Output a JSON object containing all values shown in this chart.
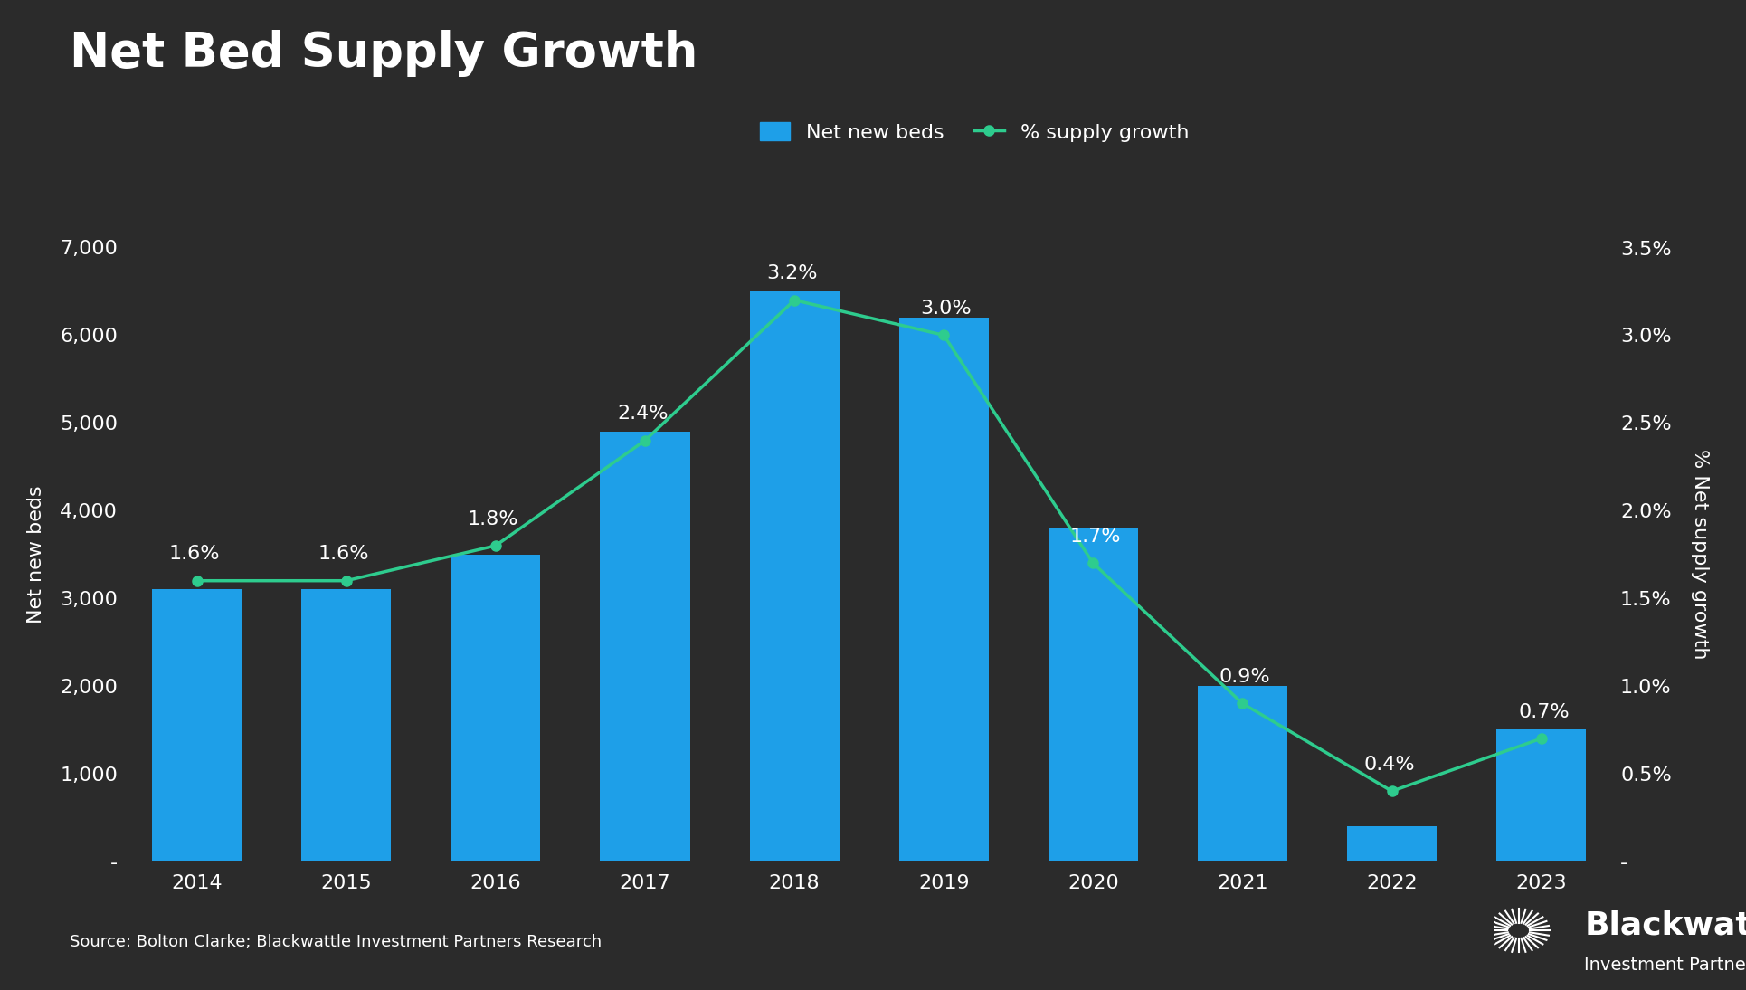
{
  "title": "Net Bed Supply Growth",
  "years": [
    2014,
    2015,
    2016,
    2017,
    2018,
    2019,
    2020,
    2021,
    2022,
    2023
  ],
  "net_new_beds": [
    3100,
    3100,
    3500,
    4900,
    6500,
    6200,
    3800,
    2000,
    400,
    1500
  ],
  "supply_growth": [
    1.6,
    1.6,
    1.8,
    2.4,
    3.2,
    3.0,
    1.7,
    0.9,
    0.4,
    0.7
  ],
  "supply_growth_labels": [
    "1.6%",
    "1.6%",
    "1.8%",
    "2.4%",
    "3.2%",
    "3.0%",
    "1.7%",
    "0.9%",
    "0.4%",
    "0.7%"
  ],
  "bar_color": "#1E9FE8",
  "line_color": "#2ECC8E",
  "background_color": "#2B2B2B",
  "text_color": "#FFFFFF",
  "ylabel_left": "Net new beds",
  "ylabel_right": "% Net supply growth",
  "left_yticks": [
    0,
    1000,
    2000,
    3000,
    4000,
    5000,
    6000,
    7000
  ],
  "left_ytick_labels": [
    "-",
    "1,000",
    "2,000",
    "3,000",
    "4,000",
    "5,000",
    "6,000",
    "7,000"
  ],
  "right_yticks": [
    0.0,
    0.5,
    1.0,
    1.5,
    2.0,
    2.5,
    3.0,
    3.5
  ],
  "right_ytick_labels": [
    "-",
    "0.5%",
    "1.0%",
    "1.5%",
    "2.0%",
    "2.5%",
    "3.0%",
    "3.5%"
  ],
  "ylim_left": [
    0,
    7000
  ],
  "ylim_right": [
    0.0,
    3.5
  ],
  "legend_bar_label": "Net new beds",
  "legend_line_label": "% supply growth",
  "source_text": "Source: Bolton Clarke; Blackwattle Investment Partners Research",
  "font_size_title": 38,
  "font_size_axis_label": 16,
  "font_size_tick": 16,
  "font_size_annotation": 16,
  "font_size_legend": 16,
  "font_size_source": 13,
  "blackwattle_large": 26,
  "blackwattle_small": 14
}
